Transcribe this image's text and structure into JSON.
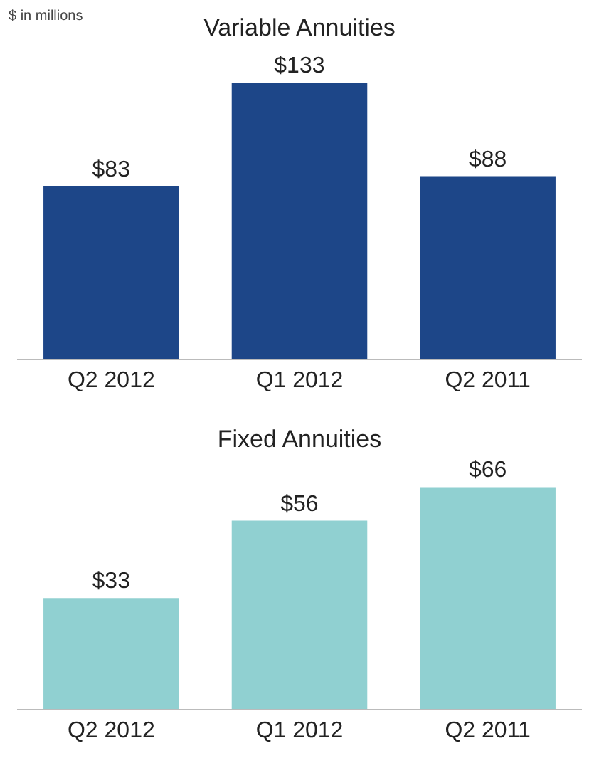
{
  "chart_data": [
    {
      "type": "bar",
      "title": "Variable Annuities",
      "annotations": [
        "$ in millions"
      ],
      "categories": [
        "Q2 2012",
        "Q1 2012",
        "Q2 2011"
      ],
      "values": [
        83,
        133,
        88
      ],
      "value_labels": [
        "$83",
        "$133",
        "$88"
      ],
      "color": "#1d4688"
    },
    {
      "type": "bar",
      "title": "Fixed Annuities",
      "categories": [
        "Q2 2012",
        "Q1 2012",
        "Q2 2011"
      ],
      "values": [
        33,
        56,
        66
      ],
      "value_labels": [
        "$33",
        "$56",
        "$66"
      ],
      "color": "#90d0d1"
    }
  ]
}
